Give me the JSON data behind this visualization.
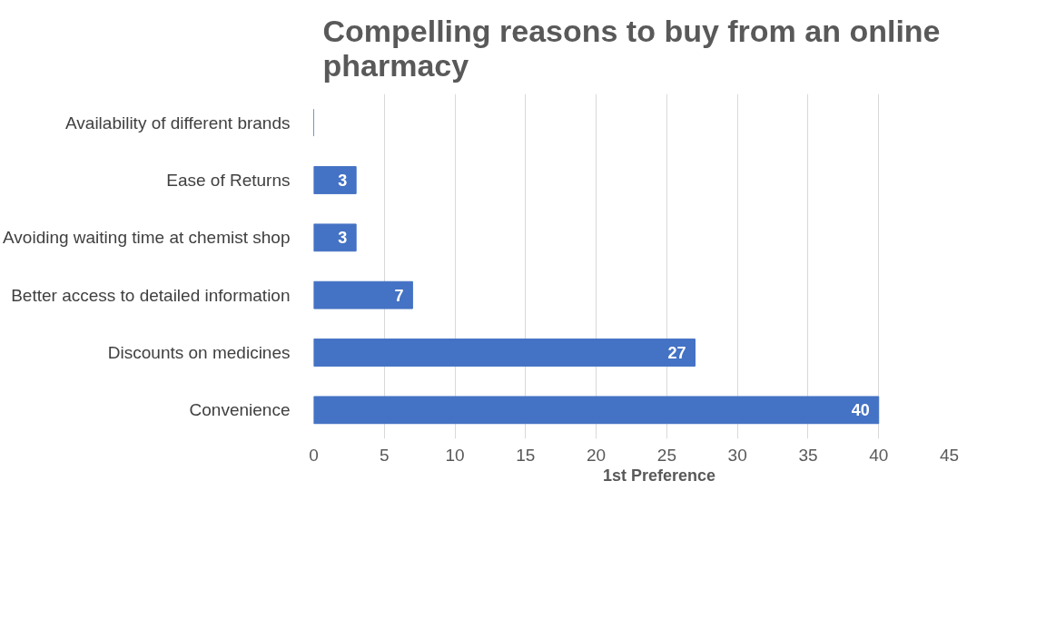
{
  "chart_data": {
    "type": "bar",
    "orientation": "horizontal",
    "title": "Compelling reasons to buy from an online pharmacy",
    "categories": [
      "Availability of different brands",
      "Ease of Returns",
      "Avoiding waiting time at chemist shop",
      "Better access to detailed information",
      "Discounts on medicines",
      "Convenience"
    ],
    "series": [
      {
        "name": "1st Preference",
        "color": "#4472c4",
        "values": [
          0,
          3,
          3,
          7,
          27,
          40
        ],
        "value_labels": [
          null,
          "3",
          "3",
          "7",
          "27",
          "40"
        ]
      }
    ],
    "xlim": [
      0,
      45
    ],
    "xticks": [
      0,
      5,
      10,
      15,
      20,
      25,
      30,
      35,
      40,
      45
    ],
    "grid": "x",
    "legend": "bottom"
  }
}
